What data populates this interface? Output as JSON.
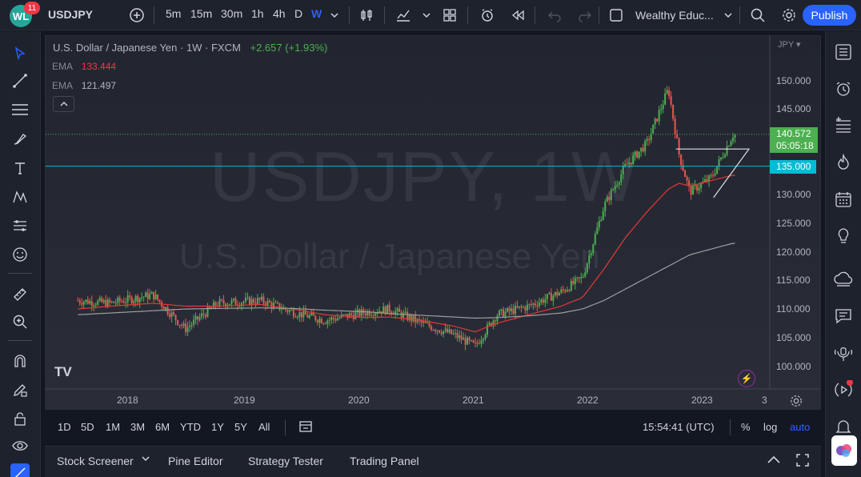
{
  "app": {
    "notifications": "11",
    "symbol": "USDJPY",
    "intervals": [
      "5m",
      "15m",
      "30m",
      "1h",
      "4h",
      "D",
      "W"
    ],
    "active_interval": "W",
    "layout_name": "Wealthy Educ...",
    "publish_label": "Publish"
  },
  "chart": {
    "title": "U.S. Dollar / Japanese Yen",
    "interval": "1W",
    "exchange": "FXCM",
    "change": "+2.657 (+1.93%)",
    "ema1_label": "EMA",
    "ema1_value": "133.444",
    "ema2_label": "EMA",
    "ema2_value": "121.497",
    "watermark_symbol": "USDJPY, 1W",
    "watermark_name": "U.S. Dollar / Japanese Yen",
    "currency": "JPY",
    "last_price": "140.572",
    "countdown": "05:05:18",
    "hline_price": "135.000",
    "price_ticks": [
      "150.000",
      "145.000",
      "140.000",
      "135.000",
      "130.000",
      "125.000",
      "120.000",
      "115.000",
      "110.000",
      "105.000",
      "100.000"
    ],
    "time_ticks": [
      "2018",
      "2019",
      "2020",
      "2021",
      "2022",
      "2023",
      "3"
    ],
    "brand": "TV"
  },
  "chart_data": {
    "type": "line",
    "title": "U.S. Dollar / Japanese Yen · 1W · FXCM",
    "xlabel": "",
    "ylabel": "",
    "x": [
      "2017.3",
      "2017.6",
      "2018.0",
      "2018.3",
      "2018.6",
      "2019.0",
      "2019.3",
      "2019.6",
      "2020.0",
      "2020.2",
      "2020.5",
      "2020.8",
      "2021.0",
      "2021.2",
      "2021.5",
      "2021.8",
      "2022.0",
      "2022.2",
      "2022.4",
      "2022.6",
      "2022.8",
      "2022.9",
      "2023.0",
      "2023.2",
      "2023.4"
    ],
    "ylim": [
      98,
      153
    ],
    "series": [
      {
        "name": "",
        "values": [
          111.5,
          111.0,
          112.5,
          106.5,
          111.0,
          111.5,
          109.5,
          108.0,
          109.5,
          110.0,
          107.5,
          105.5,
          103.5,
          109.0,
          110.5,
          113.0,
          115.5,
          128.0,
          135.0,
          139.0,
          148.5,
          137.0,
          130.5,
          133.0,
          140.5
        ]
      },
      {
        "name": "",
        "values": [
          110.0,
          110.5,
          111.0,
          110.5,
          110.5,
          110.8,
          110.0,
          109.0,
          108.5,
          108.6,
          108.0,
          107.0,
          106.0,
          107.5,
          109.0,
          110.5,
          112.0,
          117.0,
          122.5,
          127.0,
          131.0,
          132.0,
          131.5,
          132.5,
          133.4
        ]
      },
      {
        "name": "",
        "values": [
          109.0,
          109.3,
          109.7,
          110.0,
          110.1,
          110.2,
          110.1,
          109.8,
          109.5,
          109.2,
          108.9,
          108.6,
          108.4,
          108.5,
          108.8,
          109.3,
          110.0,
          111.5,
          113.5,
          115.5,
          117.5,
          118.5,
          119.5,
          120.5,
          121.5
        ]
      }
    ],
    "annotations": [
      "Horizontal line at 135.000",
      "Ascending triangle drawing near the latest candles"
    ],
    "grid": false,
    "legend": "top-left"
  }
}
